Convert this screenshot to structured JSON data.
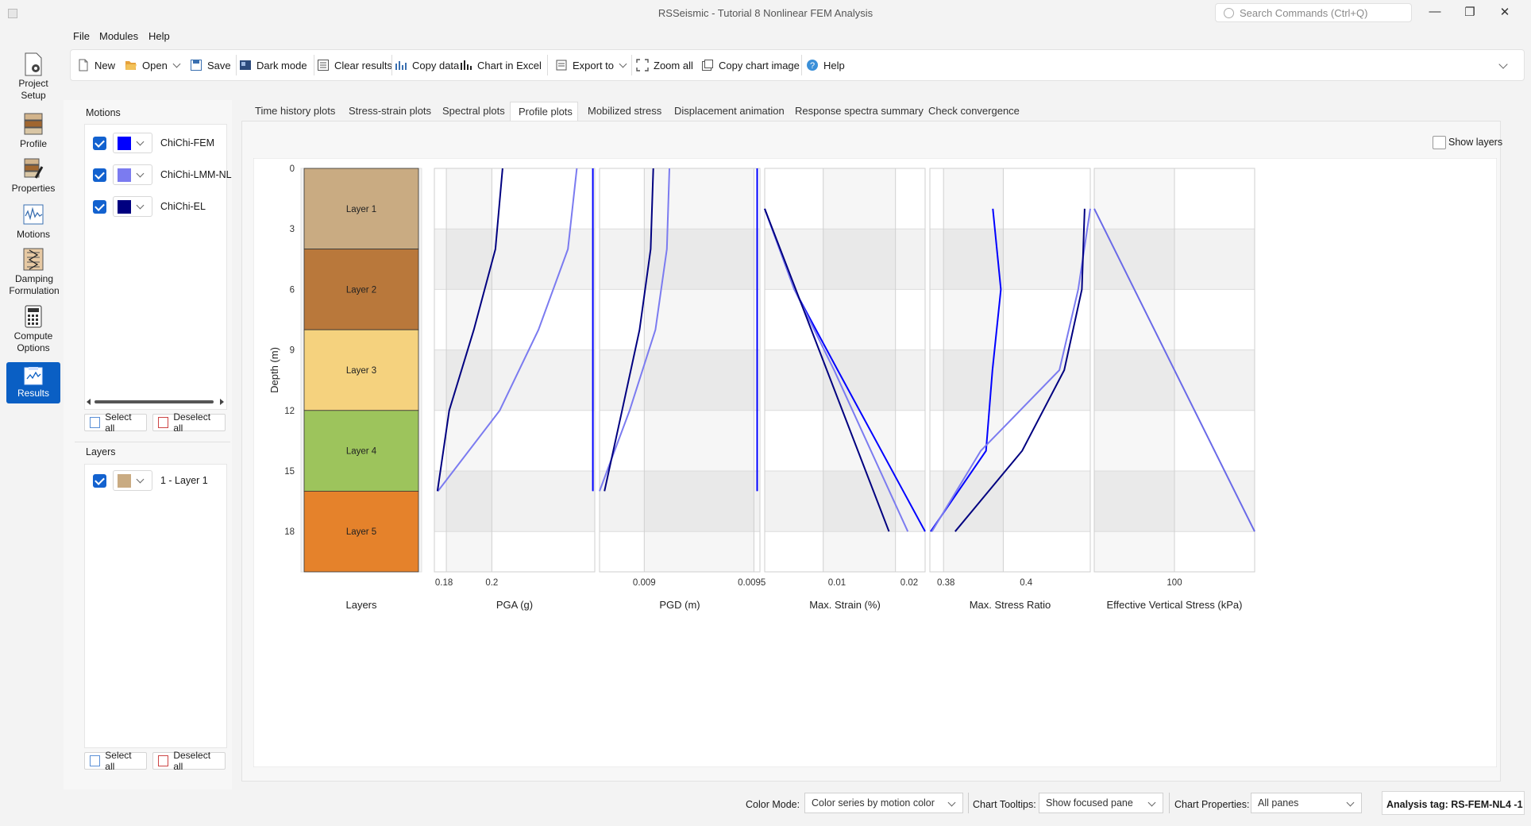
{
  "window": {
    "title": "RSSeismic - Tutorial 8 Nonlinear FEM Analysis",
    "search_placeholder": "Search Commands (Ctrl+Q)"
  },
  "menu": [
    "File",
    "Modules",
    "Help"
  ],
  "toolbar": {
    "new": "New",
    "open": "Open",
    "save": "Save",
    "dark_mode": "Dark mode",
    "clear_results": "Clear results",
    "copy_data": "Copy data",
    "chart_in_excel": "Chart in Excel",
    "export_to": "Export to",
    "zoom_all": "Zoom all",
    "copy_chart_image": "Copy chart image",
    "help": "Help"
  },
  "nav": {
    "project_setup": "Project Setup",
    "profile": "Profile",
    "properties": "Properties",
    "motions": "Motions",
    "damping": "Damping Formulation",
    "compute": "Compute Options",
    "results": "Results"
  },
  "motions_panel": {
    "title": "Motions",
    "items": [
      {
        "label": "ChiChi-FEM",
        "color": "#0000ff"
      },
      {
        "label": "ChiChi-LMM-NL",
        "color": "#7b7bf0"
      },
      {
        "label": "ChiChi-EL",
        "color": "#000080"
      }
    ],
    "select_all": "Select all",
    "deselect_all": "Deselect all"
  },
  "layers_panel": {
    "title": "Layers",
    "items": [
      {
        "label": "1 - Layer 1",
        "color": "#c9ab82"
      }
    ],
    "select_all": "Select all",
    "deselect_all": "Deselect all"
  },
  "tabs": [
    "Time history plots",
    "Stress-strain plots",
    "Spectral plots",
    "Profile plots",
    "Mobilized stress",
    "Displacement animation",
    "Response spectra summary",
    "Check convergence"
  ],
  "active_tab": "Profile plots",
  "show_layers_label": "Show layers",
  "status": {
    "color_mode_label": "Color Mode:",
    "color_mode_value": "Color series by motion color",
    "tooltips_label": "Chart Tooltips:",
    "tooltips_value": "Show focused pane",
    "chart_props_label": "Chart Properties:",
    "chart_props_value": "All panes",
    "analysis_tag": "Analysis tag: RS-FEM-NL4 -1"
  },
  "chart_data": {
    "type": "line",
    "y_axis": {
      "label": "Depth (m)",
      "range": [
        0,
        20
      ],
      "inverted": true,
      "ticks": [
        0,
        3,
        6,
        9,
        12,
        15,
        18
      ]
    },
    "layers": {
      "xlabel": "Layers",
      "items": [
        {
          "name": "Layer 1",
          "top": 0,
          "bottom": 4,
          "color": "#c9ab82"
        },
        {
          "name": "Layer 2",
          "top": 4,
          "bottom": 8,
          "color": "#b9783b"
        },
        {
          "name": "Layer 3",
          "top": 8,
          "bottom": 12,
          "color": "#f5d27e"
        },
        {
          "name": "Layer 4",
          "top": 12,
          "bottom": 16,
          "color": "#9dc45c"
        },
        {
          "name": "Layer 5",
          "top": 16,
          "bottom": 20,
          "color": "#e5822b"
        }
      ]
    },
    "panes": [
      {
        "xlabel": "PGA (g)",
        "xlim": [
          0.176,
          0.243
        ],
        "xticks": [
          0.18,
          0.2
        ],
        "tick_labels": [
          "0.18",
          "0.2"
        ],
        "gridlines": [
          0.181,
          0.2
        ],
        "series": [
          {
            "motion": "ChiChi-FEM",
            "color": "#0000ff",
            "points": [
              [
                0.2422,
                0
              ],
              [
                0.2422,
                16
              ]
            ]
          },
          {
            "motion": "ChiChi-LMM-NL",
            "color": "#7b7bf0",
            "points": [
              [
                0.2355,
                0
              ],
              [
                0.2318,
                4
              ],
              [
                0.2195,
                8
              ],
              [
                0.2033,
                12
              ],
              [
                0.1775,
                16
              ]
            ]
          },
          {
            "motion": "ChiChi-EL",
            "color": "#000080",
            "points": [
              [
                0.2045,
                0
              ],
              [
                0.2015,
                4
              ],
              [
                0.1925,
                8
              ],
              [
                0.1822,
                12
              ],
              [
                0.1773,
                16
              ]
            ]
          }
        ]
      },
      {
        "xlabel": "PGD (m)",
        "xlim": [
          0.008792,
          0.009538
        ],
        "xticks": [
          0.009,
          0.0095
        ],
        "tick_labels": [
          "0.009",
          "0.0095"
        ],
        "gridlines": [
          0.009,
          0.00951
        ],
        "series": [
          {
            "motion": "ChiChi-FEM",
            "color": "#0000ff",
            "points": [
              [
                0.009525,
                0
              ],
              [
                0.009525,
                16
              ]
            ]
          },
          {
            "motion": "ChiChi-LMM-NL",
            "color": "#7b7bf0",
            "points": [
              [
                0.009117,
                0
              ],
              [
                0.009105,
                4
              ],
              [
                0.009052,
                8
              ],
              [
                0.008932,
                12
              ],
              [
                0.008792,
                16
              ]
            ]
          },
          {
            "motion": "ChiChi-EL",
            "color": "#000080",
            "points": [
              [
                0.009042,
                0
              ],
              [
                0.00903,
                4
              ],
              [
                0.008978,
                8
              ],
              [
                0.008897,
                12
              ],
              [
                0.008815,
                16
              ]
            ]
          }
        ]
      },
      {
        "xlabel": "Max. Strain (%)",
        "xlim": [
          0,
          0.0222
        ],
        "xticks": [
          0.01,
          0.02
        ],
        "tick_labels": [
          "0.01",
          "0.02"
        ],
        "gridlines": [
          0.0081,
          0.0181
        ],
        "series": [
          {
            "motion": "ChiChi-FEM",
            "color": "#0000ff",
            "points": [
              [
                0,
                2
              ],
              [
                0.0041,
                6
              ],
              [
                0.0101,
                10
              ],
              [
                0.0222,
                18
              ]
            ]
          },
          {
            "motion": "ChiChi-LMM-NL",
            "color": "#7b7bf0",
            "points": [
              [
                0,
                2
              ],
              [
                0.0041,
                6
              ],
              [
                0.0096,
                10
              ],
              [
                0.0198,
                18
              ]
            ]
          },
          {
            "motion": "ChiChi-EL",
            "color": "#000080",
            "points": [
              [
                0,
                2
              ],
              [
                0.0172,
                18
              ]
            ]
          }
        ]
      },
      {
        "xlabel": "Max. Stress Ratio",
        "xlim": [
          0.376,
          0.416
        ],
        "xticks": [
          0.38,
          0.4
        ],
        "tick_labels": [
          "0.38",
          "0.4"
        ],
        "gridlines": [
          0.3794,
          0.3943
        ],
        "series": [
          {
            "motion": "ChiChi-FEM",
            "color": "#0000ff",
            "points": [
              [
                0.3917,
                2
              ],
              [
                0.3937,
                6
              ],
              [
                0.3916,
                10
              ],
              [
                0.39,
                14
              ],
              [
                0.3762,
                18
              ]
            ]
          },
          {
            "motion": "ChiChi-LMM-NL",
            "color": "#7b7bf0",
            "points": [
              [
                0.416,
                2
              ],
              [
                0.413,
                6
              ],
              [
                0.4083,
                10
              ],
              [
                0.3887,
                14
              ],
              [
                0.3765,
                18
              ]
            ]
          },
          {
            "motion": "ChiChi-EL",
            "color": "#000080",
            "points": [
              [
                0.4146,
                2
              ],
              [
                0.4139,
                6
              ],
              [
                0.4095,
                10
              ],
              [
                0.399,
                14
              ],
              [
                0.3823,
                18
              ]
            ]
          }
        ]
      },
      {
        "xlabel": "Effective Vertical Stress (kPa)",
        "xlim": [
          0,
          200
        ],
        "xticks": [
          100
        ],
        "tick_labels": [
          "100"
        ],
        "gridlines": [
          100
        ],
        "series": [
          {
            "motion": "ChiChi-LMM-NL",
            "color": "#6a6ae8",
            "points": [
              [
                0,
                2
              ],
              [
                200,
                18
              ]
            ]
          }
        ]
      }
    ]
  }
}
